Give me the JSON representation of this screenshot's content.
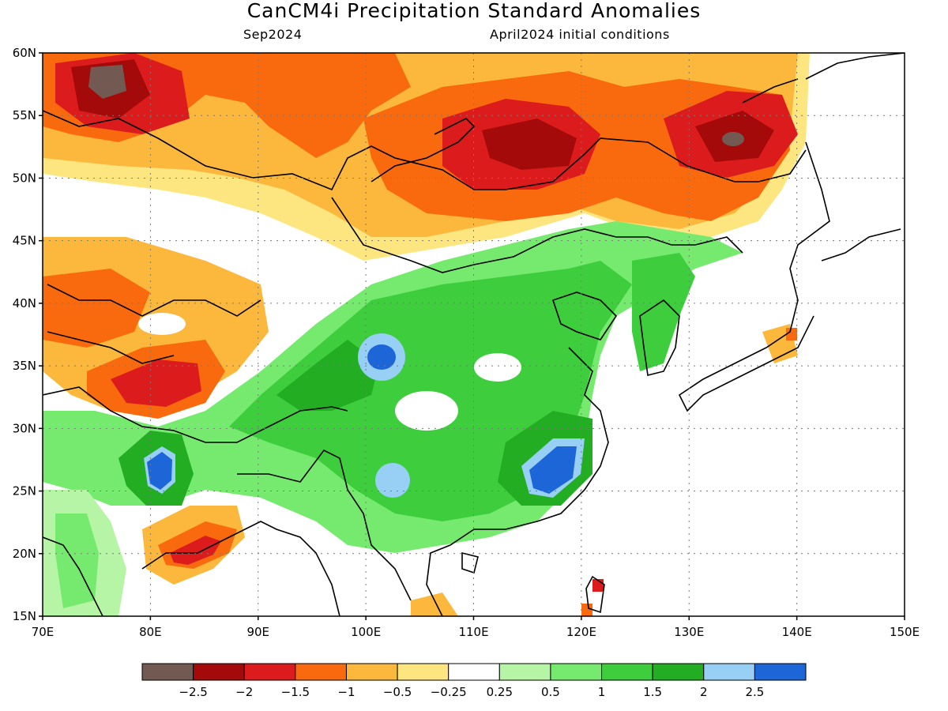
{
  "title": "CanCM4i Precipitation Standard Anomalies",
  "valid_month": "Sep2024",
  "initial_conditions": "April2024 initial conditions",
  "map": {
    "lon_labels": [
      "70E",
      "80E",
      "90E",
      "100E",
      "110E",
      "120E",
      "130E",
      "140E",
      "150E"
    ],
    "lat_labels": [
      "15N",
      "20N",
      "25N",
      "30N",
      "35N",
      "40N",
      "45N",
      "50N",
      "55N",
      "60N"
    ],
    "lon_range": [
      70,
      150
    ],
    "lat_range": [
      15,
      60
    ],
    "grid": "dotted"
  },
  "colorbar": {
    "colors": [
      "#725a52",
      "#a40a0a",
      "#dc1c1c",
      "#f96a0f",
      "#fbb83c",
      "#fde680",
      "#ffffff",
      "#b6f5a5",
      "#76ea6f",
      "#3dcd3d",
      "#22ad22",
      "#97cff5",
      "#1d66d8"
    ],
    "labels": [
      "−2.5",
      "−2",
      "−1.5",
      "−1",
      "−0.5",
      "−0.25",
      "0.25",
      "0.5",
      "1",
      "1.5",
      "2",
      "2.5"
    ]
  }
}
